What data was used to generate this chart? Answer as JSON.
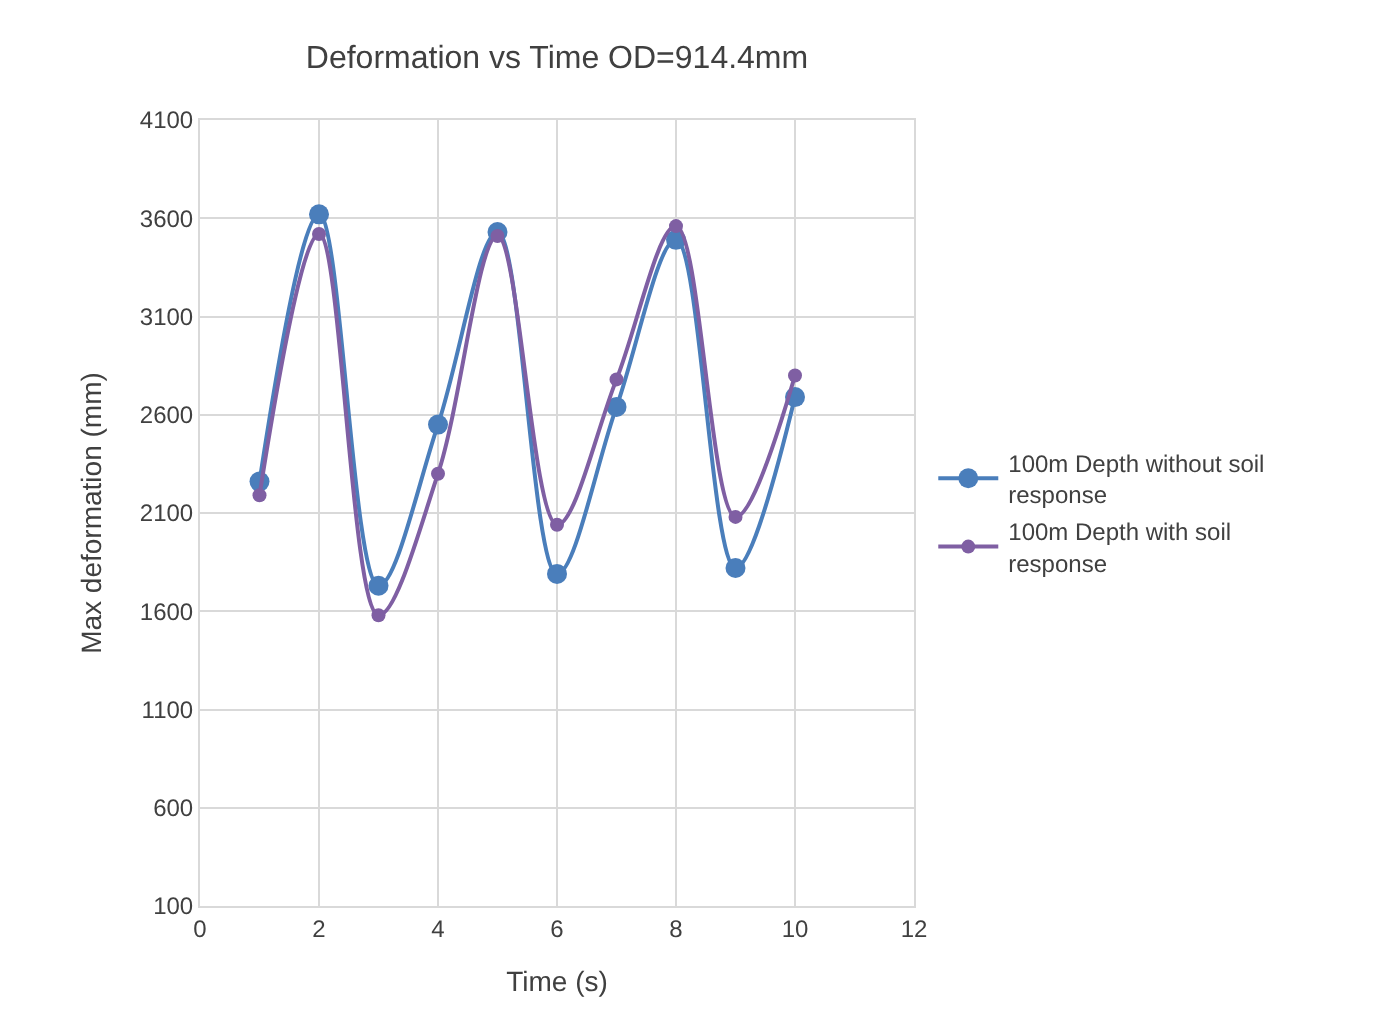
{
  "chart_data": {
    "type": "line",
    "title": "Deformation vs Time OD=914.4mm",
    "xlabel": "Time (s)",
    "ylabel": "Max deformation (mm)",
    "x": [
      1,
      2,
      3,
      4,
      5,
      6,
      7,
      8,
      9,
      10
    ],
    "series": [
      {
        "name": "100m Depth without soil response",
        "color": "#4a7ebb",
        "values": [
          2260,
          3620,
          1730,
          2550,
          3530,
          1790,
          2640,
          3490,
          1820,
          2690
        ]
      },
      {
        "name": "100m Depth with soil response",
        "color": "#7f5fa3",
        "values": [
          2190,
          3520,
          1580,
          2300,
          3510,
          2040,
          2780,
          3560,
          2080,
          2800
        ]
      }
    ],
    "xlim": [
      0,
      12
    ],
    "xticks": [
      0,
      2,
      4,
      6,
      8,
      10,
      12
    ],
    "ylim": [
      100,
      4100
    ],
    "yticks": [
      100,
      600,
      1100,
      1600,
      2100,
      2600,
      3100,
      3600,
      4100
    ],
    "grid": true,
    "legend": "right",
    "marker": "circle",
    "line_style": "solid"
  }
}
